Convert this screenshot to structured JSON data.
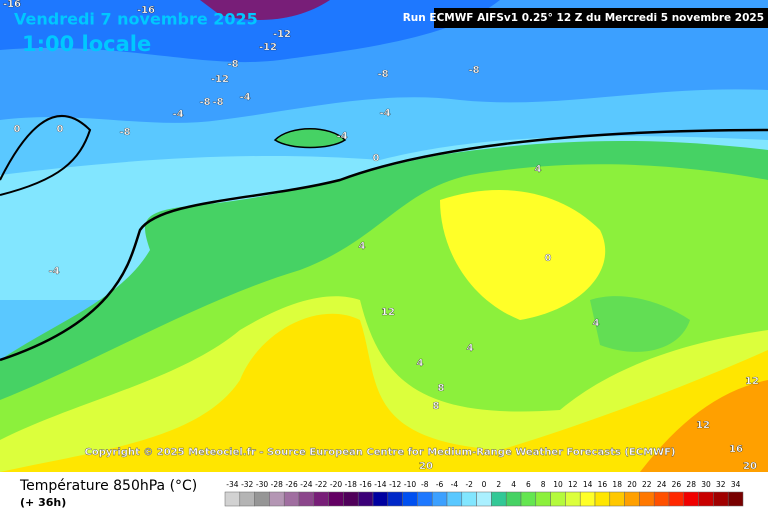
{
  "header": {
    "date": "Vendredi 7 novembre 2025",
    "time": "1:00 locale",
    "run": "Run ECMWF AIFSv1 0.25° 12 Z du Mercredi 5 novembre 2025"
  },
  "copyright": "Copyright © 2025 Meteociel.fr - Source European Centre for Medium-Range Weather Forecasts (ECMWF)",
  "contour_labels": [
    "-16",
    "-16",
    "-12",
    "-12",
    "-8",
    "-12",
    "-8",
    "-4",
    "-8",
    "-8",
    "-4",
    "-8",
    "0",
    "0",
    "-8",
    "-4",
    "-4",
    "0",
    "-4",
    "0",
    "4",
    "12",
    "4",
    "8",
    "4",
    "4",
    "8",
    "4",
    "12",
    "12",
    "16",
    "20",
    "20"
  ],
  "legend": {
    "title": "Température 850hPa (°C)",
    "subtitle": "(+ 36h)",
    "values": [
      -34,
      -32,
      -30,
      -28,
      -26,
      -24,
      -22,
      -20,
      -18,
      -16,
      -14,
      -12,
      -10,
      -8,
      -6,
      -4,
      -2,
      0,
      2,
      4,
      6,
      8,
      10,
      12,
      14,
      16,
      18,
      20,
      22,
      24,
      26,
      28,
      30,
      32,
      34
    ],
    "colors": [
      "#d2d2d2",
      "#b4b4b4",
      "#969696",
      "#b496b4",
      "#a06ea0",
      "#8c468c",
      "#781e78",
      "#640064",
      "#50005a",
      "#3c0078",
      "#0000a0",
      "#0028c8",
      "#0050f0",
      "#1e78ff",
      "#3ca0ff",
      "#5ac8ff",
      "#82e6ff",
      "#aaf0ff",
      "#32c896",
      "#46d264",
      "#64e650",
      "#8cf03c",
      "#b4fa3c",
      "#dcff3c",
      "#ffff28",
      "#ffe600",
      "#ffc800",
      "#ffa000",
      "#ff7800",
      "#ff5000",
      "#ff2800",
      "#f00000",
      "#c80000",
      "#a00000",
      "#780000"
    ]
  }
}
